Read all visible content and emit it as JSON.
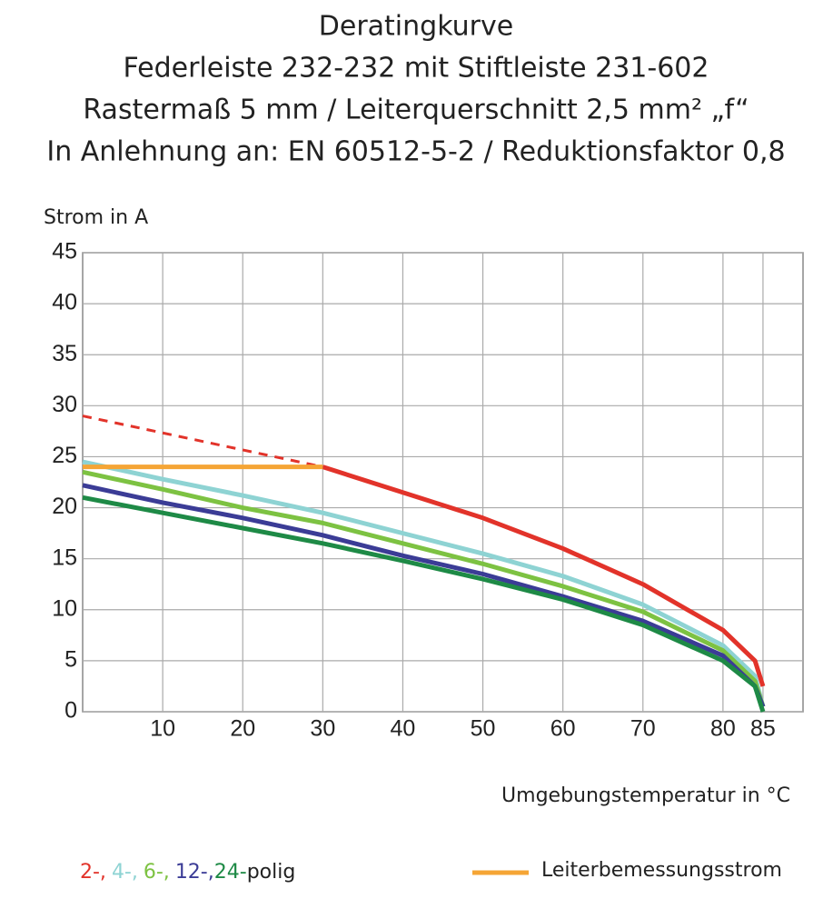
{
  "chart_data": {
    "type": "line",
    "title": [
      "Deratingkurve",
      "Federleiste 232-232 mit Stiftleiste 231-602",
      "Rastermaß 5 mm / Leiterquerschnitt 2,5 mm² „f“",
      "In Anlehnung an: EN 60512-5-2 / Reduktionsfaktor 0,8"
    ],
    "y_label": "Strom in A",
    "x_label": "Umgebungstemperatur in °C",
    "x": [
      0,
      10,
      20,
      30,
      40,
      50,
      60,
      70,
      80,
      84,
      85
    ],
    "series": [
      {
        "name": "2-,",
        "color": "#e2332a",
        "values": [
          null,
          null,
          null,
          24,
          21.5,
          19,
          16,
          12.5,
          8,
          5,
          2.5
        ]
      },
      {
        "color": "#e2332a",
        "dash": true,
        "x": [
          0,
          30
        ],
        "values": [
          29,
          24
        ]
      },
      {
        "name": "4-,",
        "color": "#8ed3d3",
        "values": [
          24.5,
          22.8,
          21.2,
          19.5,
          17.5,
          15.5,
          13.3,
          10.5,
          6.5,
          3.5,
          0.5
        ]
      },
      {
        "name": "6-,",
        "color": "#7dc242",
        "values": [
          23.5,
          21.8,
          20,
          18.5,
          16.5,
          14.5,
          12.3,
          9.8,
          6,
          3,
          0.5
        ]
      },
      {
        "name": "12-,",
        "color": "#3b3c96",
        "values": [
          22.2,
          20.5,
          19,
          17.3,
          15.3,
          13.5,
          11.3,
          8.9,
          5.5,
          2.5,
          0.5
        ]
      },
      {
        "name": "24-",
        "color": "#1e8a46",
        "values": [
          21,
          19.5,
          18,
          16.5,
          14.8,
          13,
          11,
          8.5,
          5,
          2.5,
          0
        ]
      },
      {
        "name": "Leiterbemessungsstrom",
        "color": "#f5a535",
        "x": [
          0,
          30
        ],
        "values": [
          24,
          24
        ]
      }
    ],
    "legend_suffix": "polig",
    "xlim": [
      0,
      90
    ],
    "ylim": [
      0,
      45
    ],
    "xticks": [
      10,
      20,
      30,
      40,
      50,
      60,
      70,
      80,
      85
    ],
    "yticks": [
      0,
      5,
      10,
      15,
      20,
      25,
      30,
      35,
      40,
      45
    ],
    "grid": true
  }
}
